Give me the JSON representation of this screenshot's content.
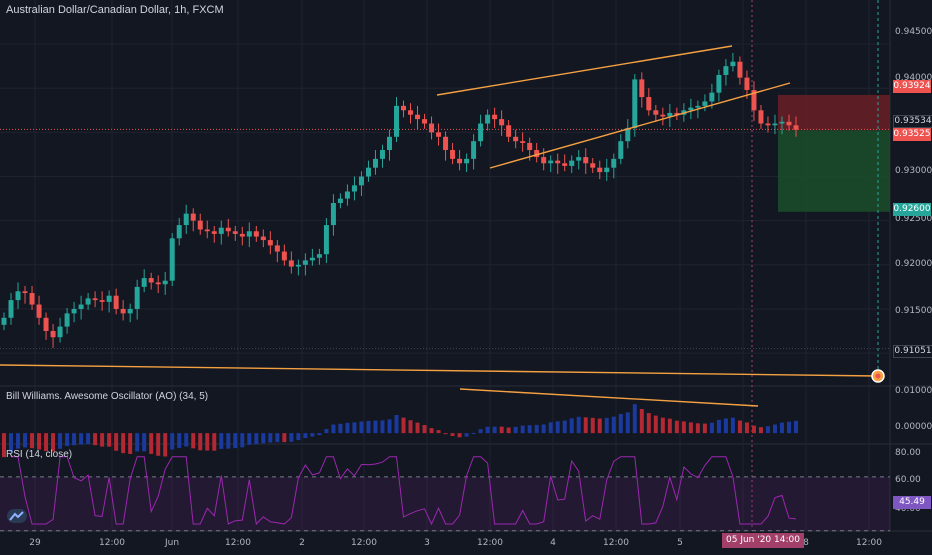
{
  "header": {
    "title": "Australian Dollar/Canadian Dollar, 1h, FXCM"
  },
  "price_axis": {
    "labels": [
      "0.94500",
      "0.94000",
      "0.93000",
      "0.92500",
      "0.92000",
      "0.91500"
    ],
    "tags": {
      "stop": "0.93924",
      "current": "0.93534",
      "entry": "0.93525",
      "target": "0.92600",
      "level": "0.91051"
    }
  },
  "ao_pane": {
    "label": "Bill Williams. Awesome Oscillator (AO) (34, 5)",
    "axis_labels": [
      "0.01000",
      "0.00000"
    ]
  },
  "rsi_pane": {
    "label": "RSI (14, close)",
    "axis_labels": [
      "80.00",
      "60.00",
      "40.00"
    ],
    "current_value": "45.49"
  },
  "time_axis": {
    "labels": [
      "29",
      "12:00",
      "Jun",
      "12:00",
      "2",
      "12:00",
      "3",
      "12:00",
      "4",
      "12:00",
      "5",
      "8",
      "12:00"
    ],
    "highlight": "05 Jun '20   14:00"
  },
  "colors": {
    "up": "#26a69a",
    "down": "#ef5350",
    "trendline": "#f5a142",
    "rsi": "#9c27b0",
    "stop_zone": "#6b1e26",
    "target_zone": "#1b4d2a"
  },
  "chart_data": {
    "type": "candlestick",
    "title": "Australian Dollar/Canadian Dollar, 1h, FXCM",
    "close_series": [
      0.914,
      0.916,
      0.917,
      0.9168,
      0.9155,
      0.914,
      0.9125,
      0.9118,
      0.913,
      0.9145,
      0.915,
      0.9155,
      0.9162,
      0.916,
      0.9158,
      0.9165,
      0.915,
      0.9145,
      0.915,
      0.9175,
      0.9185,
      0.918,
      0.9178,
      0.9182,
      0.923,
      0.9245,
      0.9258,
      0.925,
      0.924,
      0.9238,
      0.9235,
      0.9242,
      0.9238,
      0.9235,
      0.9232,
      0.9238,
      0.9232,
      0.9228,
      0.9222,
      0.9215,
      0.9205,
      0.9198,
      0.92,
      0.9205,
      0.9208,
      0.9212,
      0.9245,
      0.927,
      0.9275,
      0.9283,
      0.929,
      0.93,
      0.931,
      0.932,
      0.933,
      0.9345,
      0.938,
      0.9375,
      0.937,
      0.9365,
      0.936,
      0.935,
      0.9345,
      0.933,
      0.932,
      0.9315,
      0.932,
      0.934,
      0.936,
      0.937,
      0.9365,
      0.9358,
      0.9345,
      0.934,
      0.9338,
      0.933,
      0.9322,
      0.9315,
      0.9318,
      0.9315,
      0.9312,
      0.9318,
      0.9322,
      0.9315,
      0.931,
      0.9305,
      0.931,
      0.932,
      0.934,
      0.9355,
      0.941,
      0.939,
      0.9375,
      0.937,
      0.9368,
      0.9372,
      0.937,
      0.9375,
      0.9378,
      0.938,
      0.9385,
      0.9395,
      0.9415,
      0.9425,
      0.943,
      0.9412,
      0.9398,
      0.9375,
      0.936,
      0.9358,
      0.936,
      0.9362,
      0.9358,
      0.9353
    ],
    "price_range": [
      0.9065,
      0.9475
    ],
    "levels": {
      "stop": 0.93924,
      "current": 0.93534,
      "entry": 0.93525,
      "target": 0.926,
      "support": 0.91051
    },
    "ao_range": [
      -0.002,
      0.012
    ],
    "rsi_range": [
      32,
      90
    ],
    "rsi_levels": [
      70,
      30
    ]
  }
}
